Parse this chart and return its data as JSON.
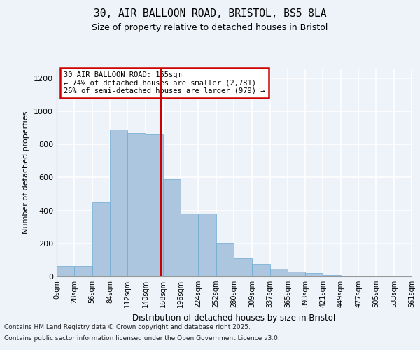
{
  "title_line1": "30, AIR BALLOON ROAD, BRISTOL, BS5 8LA",
  "title_line2": "Size of property relative to detached houses in Bristol",
  "xlabel": "Distribution of detached houses by size in Bristol",
  "ylabel": "Number of detached properties",
  "annotation_line1": "30 AIR BALLOON ROAD: 165sqm",
  "annotation_line2": "← 74% of detached houses are smaller (2,781)",
  "annotation_line3": "26% of semi-detached houses are larger (979) →",
  "property_size": 165,
  "bin_edges": [
    0,
    28,
    56,
    84,
    112,
    140,
    168,
    196,
    224,
    252,
    280,
    309,
    337,
    365,
    393,
    421,
    449,
    477,
    505,
    533,
    561
  ],
  "bar_heights": [
    65,
    65,
    450,
    890,
    870,
    860,
    590,
    380,
    380,
    205,
    110,
    75,
    45,
    30,
    20,
    10,
    5,
    3,
    2,
    1
  ],
  "bar_color": "#adc6e0",
  "bar_edge_color": "#6aaad4",
  "vline_color": "#cc0000",
  "vline_x": 165,
  "ylim": [
    0,
    1260
  ],
  "yticks": [
    0,
    200,
    400,
    600,
    800,
    1000,
    1200
  ],
  "background_color": "#eef3fa",
  "grid_color": "#ffffff",
  "footer_line1": "Contains HM Land Registry data © Crown copyright and database right 2025.",
  "footer_line2": "Contains public sector information licensed under the Open Government Licence v3.0."
}
